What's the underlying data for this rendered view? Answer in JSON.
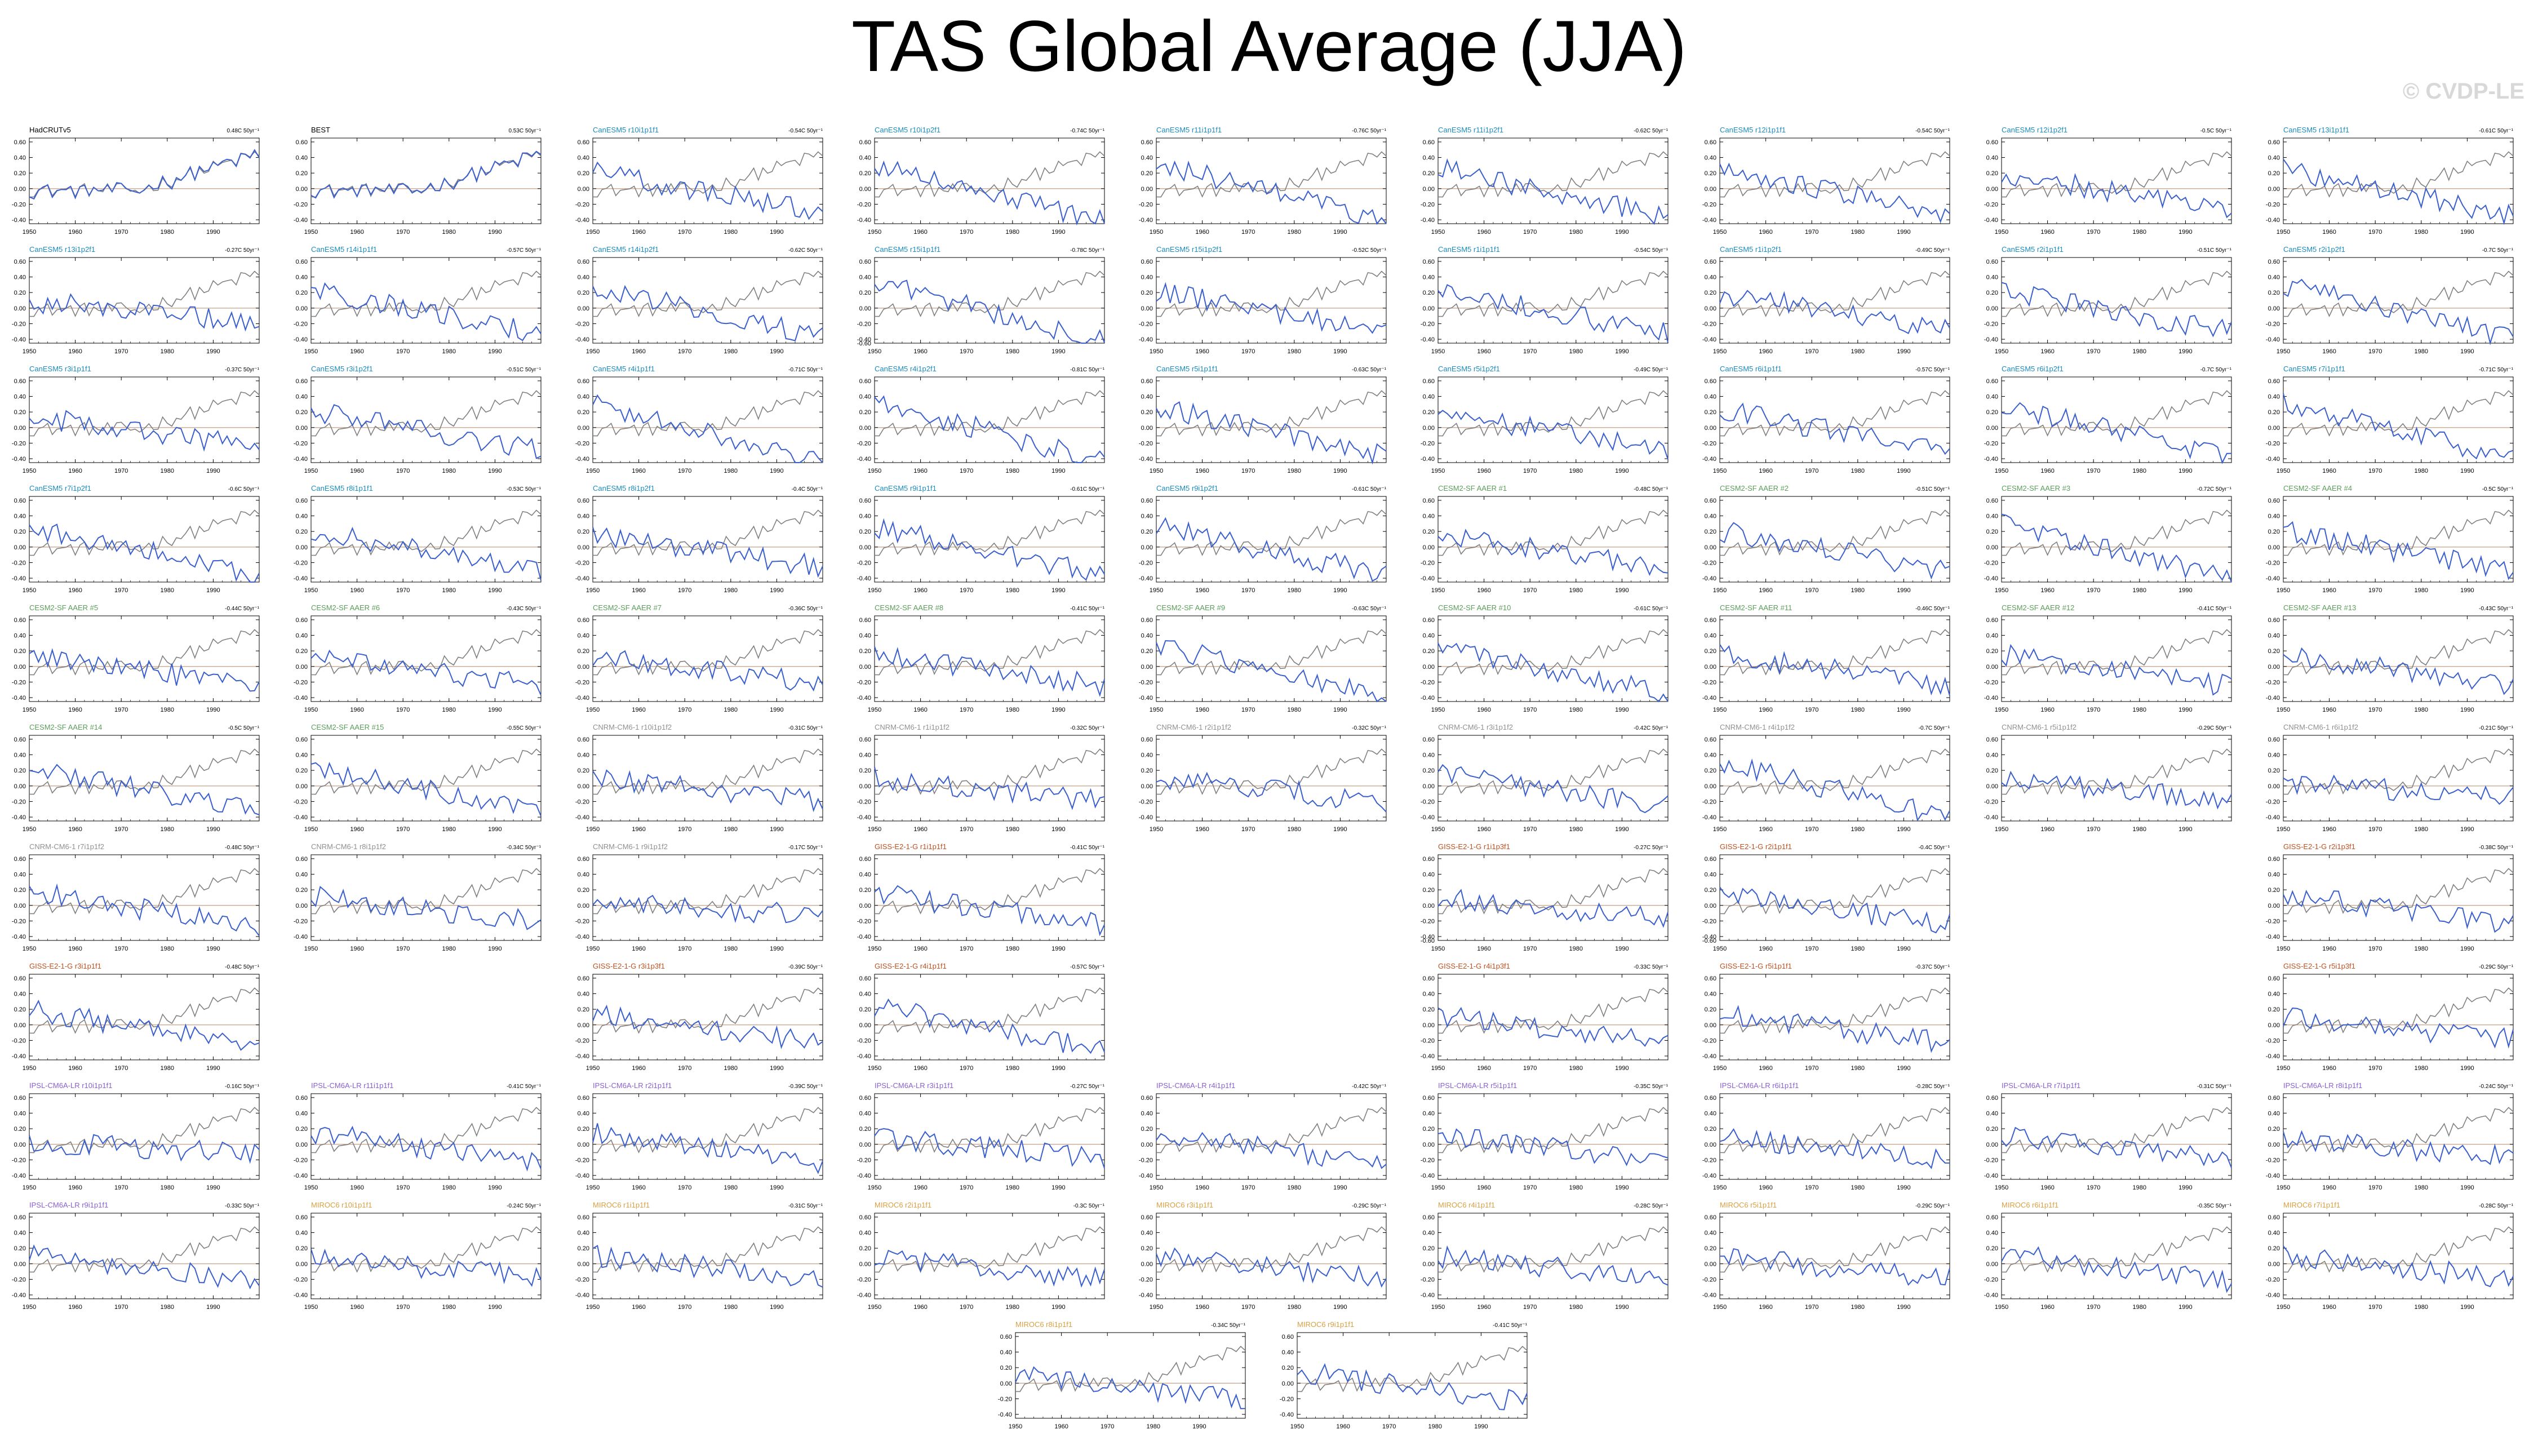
{
  "title": "TAS Global Average (JJA)",
  "watermark": "© CVDP-LE",
  "colors": {
    "obs": "#808080",
    "member_line": "#3a5fcd",
    "zero_line": "#c8a890",
    "HadCRUTv5": "#000000",
    "BEST": "#000000",
    "CanESM5": "#1a8cbf",
    "CESM2-SF AAER": "#5a9e5a",
    "CNRM-CM6-1": "#909090",
    "GISS-E2-1-G": "#c05020",
    "IPSL-CM6A-LR": "#8a60d0",
    "MIROC6": "#d8a040"
  },
  "chart_data": {
    "type": "line",
    "x_range": [
      1950,
      2000
    ],
    "x_ticks": [
      "1950",
      "1960",
      "1970",
      "1980",
      "1990"
    ],
    "y_ticks": [
      "0.60",
      "0.40",
      "0.20",
      "0.00",
      "-0.20",
      "-0.40"
    ],
    "y_ticks_alt": [
      "0.60",
      "0.40",
      "0.20",
      "0.00",
      "-0.20",
      "-0.40",
      "-0.60"
    ],
    "ylim": [
      -0.45,
      0.65
    ],
    "panels": [
      {
        "label": "HadCRUTv5",
        "trend": "0.48C 50yr⁻¹",
        "group": "HadCRUTv5",
        "row": 0,
        "col": 0
      },
      {
        "label": "BEST",
        "trend": "0.53C 50yr⁻¹",
        "group": "BEST",
        "row": 0,
        "col": 1
      },
      {
        "label": "CanESM5 r10i1p1f1",
        "trend": "-0.54C 50yr⁻¹",
        "group": "CanESM5",
        "row": 0,
        "col": 2
      },
      {
        "label": "CanESM5 r10i1p2f1",
        "trend": "-0.74C 50yr⁻¹",
        "group": "CanESM5",
        "row": 0,
        "col": 3
      },
      {
        "label": "CanESM5 r11i1p1f1",
        "trend": "-0.76C 50yr⁻¹",
        "group": "CanESM5",
        "row": 0,
        "col": 4
      },
      {
        "label": "CanESM5 r11i1p2f1",
        "trend": "-0.62C 50yr⁻¹",
        "group": "CanESM5",
        "row": 0,
        "col": 5
      },
      {
        "label": "CanESM5 r12i1p1f1",
        "trend": "-0.54C 50yr⁻¹",
        "group": "CanESM5",
        "row": 0,
        "col": 6
      },
      {
        "label": "CanESM5 r12i1p2f1",
        "trend": "-0.5C 50yr⁻¹",
        "group": "CanESM5",
        "row": 0,
        "col": 7
      },
      {
        "label": "CanESM5 r13i1p1f1",
        "trend": "-0.61C 50yr⁻¹",
        "group": "CanESM5",
        "row": 0,
        "col": 8
      },
      {
        "label": "CanESM5 r13i1p2f1",
        "trend": "-0.27C 50yr⁻¹",
        "group": "CanESM5",
        "row": 1,
        "col": 0
      },
      {
        "label": "CanESM5 r14i1p1f1",
        "trend": "-0.57C 50yr⁻¹",
        "group": "CanESM5",
        "row": 1,
        "col": 1
      },
      {
        "label": "CanESM5 r14i1p2f1",
        "trend": "-0.62C 50yr⁻¹",
        "group": "CanESM5",
        "row": 1,
        "col": 2
      },
      {
        "label": "CanESM5 r15i1p1f1",
        "trend": "-0.78C 50yr⁻¹",
        "group": "CanESM5",
        "row": 1,
        "col": 3,
        "alt": true
      },
      {
        "label": "CanESM5 r15i1p2f1",
        "trend": "-0.52C 50yr⁻¹",
        "group": "CanESM5",
        "row": 1,
        "col": 4
      },
      {
        "label": "CanESM5 r1i1p1f1",
        "trend": "-0.54C 50yr⁻¹",
        "group": "CanESM5",
        "row": 1,
        "col": 5
      },
      {
        "label": "CanESM5 r1i1p2f1",
        "trend": "-0.49C 50yr⁻¹",
        "group": "CanESM5",
        "row": 1,
        "col": 6
      },
      {
        "label": "CanESM5 r2i1p1f1",
        "trend": "-0.51C 50yr⁻¹",
        "group": "CanESM5",
        "row": 1,
        "col": 7
      },
      {
        "label": "CanESM5 r2i1p2f1",
        "trend": "-0.7C 50yr⁻¹",
        "group": "CanESM5",
        "row": 1,
        "col": 8
      },
      {
        "label": "CanESM5 r3i1p1f1",
        "trend": "-0.37C 50yr⁻¹",
        "group": "CanESM5",
        "row": 2,
        "col": 0
      },
      {
        "label": "CanESM5 r3i1p2f1",
        "trend": "-0.51C 50yr⁻¹",
        "group": "CanESM5",
        "row": 2,
        "col": 1
      },
      {
        "label": "CanESM5 r4i1p1f1",
        "trend": "-0.71C 50yr⁻¹",
        "group": "CanESM5",
        "row": 2,
        "col": 2
      },
      {
        "label": "CanESM5 r4i1p2f1",
        "trend": "-0.81C 50yr⁻¹",
        "group": "CanESM5",
        "row": 2,
        "col": 3
      },
      {
        "label": "CanESM5 r5i1p1f1",
        "trend": "-0.63C 50yr⁻¹",
        "group": "CanESM5",
        "row": 2,
        "col": 4
      },
      {
        "label": "CanESM5 r5i1p2f1",
        "trend": "-0.49C 50yr⁻¹",
        "group": "CanESM5",
        "row": 2,
        "col": 5
      },
      {
        "label": "CanESM5 r6i1p1f1",
        "trend": "-0.57C 50yr⁻¹",
        "group": "CanESM5",
        "row": 2,
        "col": 6
      },
      {
        "label": "CanESM5 r6i1p2f1",
        "trend": "-0.7C 50yr⁻¹",
        "group": "CanESM5",
        "row": 2,
        "col": 7
      },
      {
        "label": "CanESM5 r7i1p1f1",
        "trend": "-0.71C 50yr⁻¹",
        "group": "CanESM5",
        "row": 2,
        "col": 8
      },
      {
        "label": "CanESM5 r7i1p2f1",
        "trend": "-0.6C 50yr⁻¹",
        "group": "CanESM5",
        "row": 3,
        "col": 0
      },
      {
        "label": "CanESM5 r8i1p1f1",
        "trend": "-0.53C 50yr⁻¹",
        "group": "CanESM5",
        "row": 3,
        "col": 1
      },
      {
        "label": "CanESM5 r8i1p2f1",
        "trend": "-0.4C 50yr⁻¹",
        "group": "CanESM5",
        "row": 3,
        "col": 2
      },
      {
        "label": "CanESM5 r9i1p1f1",
        "trend": "-0.61C 50yr⁻¹",
        "group": "CanESM5",
        "row": 3,
        "col": 3
      },
      {
        "label": "CanESM5 r9i1p2f1",
        "trend": "-0.61C 50yr⁻¹",
        "group": "CanESM5",
        "row": 3,
        "col": 4
      },
      {
        "label": "CESM2-SF AAER #1",
        "trend": "-0.48C 50yr⁻¹",
        "group": "CESM2-SF AAER",
        "row": 3,
        "col": 5
      },
      {
        "label": "CESM2-SF AAER #2",
        "trend": "-0.51C 50yr⁻¹",
        "group": "CESM2-SF AAER",
        "row": 3,
        "col": 6
      },
      {
        "label": "CESM2-SF AAER #3",
        "trend": "-0.72C 50yr⁻¹",
        "group": "CESM2-SF AAER",
        "row": 3,
        "col": 7
      },
      {
        "label": "CESM2-SF AAER #4",
        "trend": "-0.5C 50yr⁻¹",
        "group": "CESM2-SF AAER",
        "row": 3,
        "col": 8
      },
      {
        "label": "CESM2-SF AAER #5",
        "trend": "-0.44C 50yr⁻¹",
        "group": "CESM2-SF AAER",
        "row": 4,
        "col": 0
      },
      {
        "label": "CESM2-SF AAER #6",
        "trend": "-0.43C 50yr⁻¹",
        "group": "CESM2-SF AAER",
        "row": 4,
        "col": 1
      },
      {
        "label": "CESM2-SF AAER #7",
        "trend": "-0.36C 50yr⁻¹",
        "group": "CESM2-SF AAER",
        "row": 4,
        "col": 2
      },
      {
        "label": "CESM2-SF AAER #8",
        "trend": "-0.41C 50yr⁻¹",
        "group": "CESM2-SF AAER",
        "row": 4,
        "col": 3
      },
      {
        "label": "CESM2-SF AAER #9",
        "trend": "-0.63C 50yr⁻¹",
        "group": "CESM2-SF AAER",
        "row": 4,
        "col": 4
      },
      {
        "label": "CESM2-SF AAER #10",
        "trend": "-0.61C 50yr⁻¹",
        "group": "CESM2-SF AAER",
        "row": 4,
        "col": 5
      },
      {
        "label": "CESM2-SF AAER #11",
        "trend": "-0.46C 50yr⁻¹",
        "group": "CESM2-SF AAER",
        "row": 4,
        "col": 6
      },
      {
        "label": "CESM2-SF AAER #12",
        "trend": "-0.41C 50yr⁻¹",
        "group": "CESM2-SF AAER",
        "row": 4,
        "col": 7
      },
      {
        "label": "CESM2-SF AAER #13",
        "trend": "-0.43C 50yr⁻¹",
        "group": "CESM2-SF AAER",
        "row": 4,
        "col": 8
      },
      {
        "label": "CESM2-SF AAER #14",
        "trend": "-0.5C 50yr⁻¹",
        "group": "CESM2-SF AAER",
        "row": 5,
        "col": 0
      },
      {
        "label": "CESM2-SF AAER #15",
        "trend": "-0.55C 50yr⁻¹",
        "group": "CESM2-SF AAER",
        "row": 5,
        "col": 1
      },
      {
        "label": "CNRM-CM6-1 r10i1p1f2",
        "trend": "-0.31C 50yr⁻¹",
        "group": "CNRM-CM6-1",
        "row": 5,
        "col": 2
      },
      {
        "label": "CNRM-CM6-1 r1i1p1f2",
        "trend": "-0.32C 50yr⁻¹",
        "group": "CNRM-CM6-1",
        "row": 5,
        "col": 3
      },
      {
        "label": "CNRM-CM6-1 r2i1p1f2",
        "trend": "-0.32C 50yr⁻¹",
        "group": "CNRM-CM6-1",
        "row": 5,
        "col": 4
      },
      {
        "label": "CNRM-CM6-1 r3i1p1f2",
        "trend": "-0.42C 50yr⁻¹",
        "group": "CNRM-CM6-1",
        "row": 5,
        "col": 5
      },
      {
        "label": "CNRM-CM6-1 r4i1p1f2",
        "trend": "-0.7C 50yr⁻¹",
        "group": "CNRM-CM6-1",
        "row": 5,
        "col": 6
      },
      {
        "label": "CNRM-CM6-1 r5i1p1f2",
        "trend": "-0.29C 50yr⁻¹",
        "group": "CNRM-CM6-1",
        "row": 5,
        "col": 7
      },
      {
        "label": "CNRM-CM6-1 r6i1p1f2",
        "trend": "-0.21C 50yr⁻¹",
        "group": "CNRM-CM6-1",
        "row": 5,
        "col": 8
      },
      {
        "label": "CNRM-CM6-1 r7i1p1f2",
        "trend": "-0.48C 50yr⁻¹",
        "group": "CNRM-CM6-1",
        "row": 6,
        "col": 0
      },
      {
        "label": "CNRM-CM6-1 r8i1p1f2",
        "trend": "-0.34C 50yr⁻¹",
        "group": "CNRM-CM6-1",
        "row": 6,
        "col": 1
      },
      {
        "label": "CNRM-CM6-1 r9i1p1f2",
        "trend": "-0.17C 50yr⁻¹",
        "group": "CNRM-CM6-1",
        "row": 6,
        "col": 2
      },
      {
        "label": "GISS-E2-1-G r1i1p1f1",
        "trend": "-0.41C 50yr⁻¹",
        "group": "GISS-E2-1-G",
        "row": 6,
        "col": 3
      },
      {
        "label": "GISS-E2-1-G r1i1p3f1",
        "trend": "-0.27C 50yr⁻¹",
        "group": "GISS-E2-1-G",
        "row": 6,
        "col": 5,
        "alt": true
      },
      {
        "label": "GISS-E2-1-G r2i1p1f1",
        "trend": "-0.4C 50yr⁻¹",
        "group": "GISS-E2-1-G",
        "row": 6,
        "col": 6,
        "alt": true
      },
      {
        "label": "GISS-E2-1-G r2i1p3f1",
        "trend": "-0.38C 50yr⁻¹",
        "group": "GISS-E2-1-G",
        "row": 6,
        "col": 8
      },
      {
        "label": "GISS-E2-1-G r3i1p1f1",
        "trend": "-0.48C 50yr⁻¹",
        "group": "GISS-E2-1-G",
        "row": 7,
        "col": 0
      },
      {
        "label": "GISS-E2-1-G r3i1p3f1",
        "trend": "-0.39C 50yr⁻¹",
        "group": "GISS-E2-1-G",
        "row": 7,
        "col": 2
      },
      {
        "label": "GISS-E2-1-G r4i1p1f1",
        "trend": "-0.57C 50yr⁻¹",
        "group": "GISS-E2-1-G",
        "row": 7,
        "col": 3
      },
      {
        "label": "GISS-E2-1-G r4i1p3f1",
        "trend": "-0.33C 50yr⁻¹",
        "group": "GISS-E2-1-G",
        "row": 7,
        "col": 5
      },
      {
        "label": "GISS-E2-1-G r5i1p1f1",
        "trend": "-0.37C 50yr⁻¹",
        "group": "GISS-E2-1-G",
        "row": 7,
        "col": 6
      },
      {
        "label": "GISS-E2-1-G r5i1p3f1",
        "trend": "-0.29C 50yr⁻¹",
        "group": "GISS-E2-1-G",
        "row": 7,
        "col": 8
      },
      {
        "label": "IPSL-CM6A-LR r10i1p1f1",
        "trend": "-0.16C 50yr⁻¹",
        "group": "IPSL-CM6A-LR",
        "row": 8,
        "col": 0
      },
      {
        "label": "IPSL-CM6A-LR r11i1p1f1",
        "trend": "-0.41C 50yr⁻¹",
        "group": "IPSL-CM6A-LR",
        "row": 8,
        "col": 1
      },
      {
        "label": "IPSL-CM6A-LR r2i1p1f1",
        "trend": "-0.39C 50yr⁻¹",
        "group": "IPSL-CM6A-LR",
        "row": 8,
        "col": 2
      },
      {
        "label": "IPSL-CM6A-LR r3i1p1f1",
        "trend": "-0.27C 50yr⁻¹",
        "group": "IPSL-CM6A-LR",
        "row": 8,
        "col": 3
      },
      {
        "label": "IPSL-CM6A-LR r4i1p1f1",
        "trend": "-0.42C 50yr⁻¹",
        "group": "IPSL-CM6A-LR",
        "row": 8,
        "col": 4
      },
      {
        "label": "IPSL-CM6A-LR r5i1p1f1",
        "trend": "-0.35C 50yr⁻¹",
        "group": "IPSL-CM6A-LR",
        "row": 8,
        "col": 5
      },
      {
        "label": "IPSL-CM6A-LR r6i1p1f1",
        "trend": "-0.28C 50yr⁻¹",
        "group": "IPSL-CM6A-LR",
        "row": 8,
        "col": 6
      },
      {
        "label": "IPSL-CM6A-LR r7i1p1f1",
        "trend": "-0.31C 50yr⁻¹",
        "group": "IPSL-CM6A-LR",
        "row": 8,
        "col": 7
      },
      {
        "label": "IPSL-CM6A-LR r8i1p1f1",
        "trend": "-0.24C 50yr⁻¹",
        "group": "IPSL-CM6A-LR",
        "row": 8,
        "col": 8
      },
      {
        "label": "IPSL-CM6A-LR r9i1p1f1",
        "trend": "-0.33C 50yr⁻¹",
        "group": "IPSL-CM6A-LR",
        "row": 9,
        "col": 0
      },
      {
        "label": "MIROC6 r10i1p1f1",
        "trend": "-0.24C 50yr⁻¹",
        "group": "MIROC6",
        "row": 9,
        "col": 1
      },
      {
        "label": "MIROC6 r1i1p1f1",
        "trend": "-0.31C 50yr⁻¹",
        "group": "MIROC6",
        "row": 9,
        "col": 2
      },
      {
        "label": "MIROC6 r2i1p1f1",
        "trend": "-0.3C 50yr⁻¹",
        "group": "MIROC6",
        "row": 9,
        "col": 3
      },
      {
        "label": "MIROC6 r3i1p1f1",
        "trend": "-0.29C 50yr⁻¹",
        "group": "MIROC6",
        "row": 9,
        "col": 4
      },
      {
        "label": "MIROC6 r4i1p1f1",
        "trend": "-0.28C 50yr⁻¹",
        "group": "MIROC6",
        "row": 9,
        "col": 5
      },
      {
        "label": "MIROC6 r5i1p1f1",
        "trend": "-0.29C 50yr⁻¹",
        "group": "MIROC6",
        "row": 9,
        "col": 6
      },
      {
        "label": "MIROC6 r6i1p1f1",
        "trend": "-0.35C 50yr⁻¹",
        "group": "MIROC6",
        "row": 9,
        "col": 7
      },
      {
        "label": "MIROC6 r7i1p1f1",
        "trend": "-0.28C 50yr⁻¹",
        "group": "MIROC6",
        "row": 9,
        "col": 8
      },
      {
        "label": "MIROC6 r8i1p1f1",
        "trend": "-0.34C 50yr⁻¹",
        "group": "MIROC6",
        "row": 10,
        "col": 3.5
      },
      {
        "label": "MIROC6 r9i1p1f1",
        "trend": "-0.41C 50yr⁻¹",
        "group": "MIROC6",
        "row": 10,
        "col": 4.5
      }
    ]
  }
}
